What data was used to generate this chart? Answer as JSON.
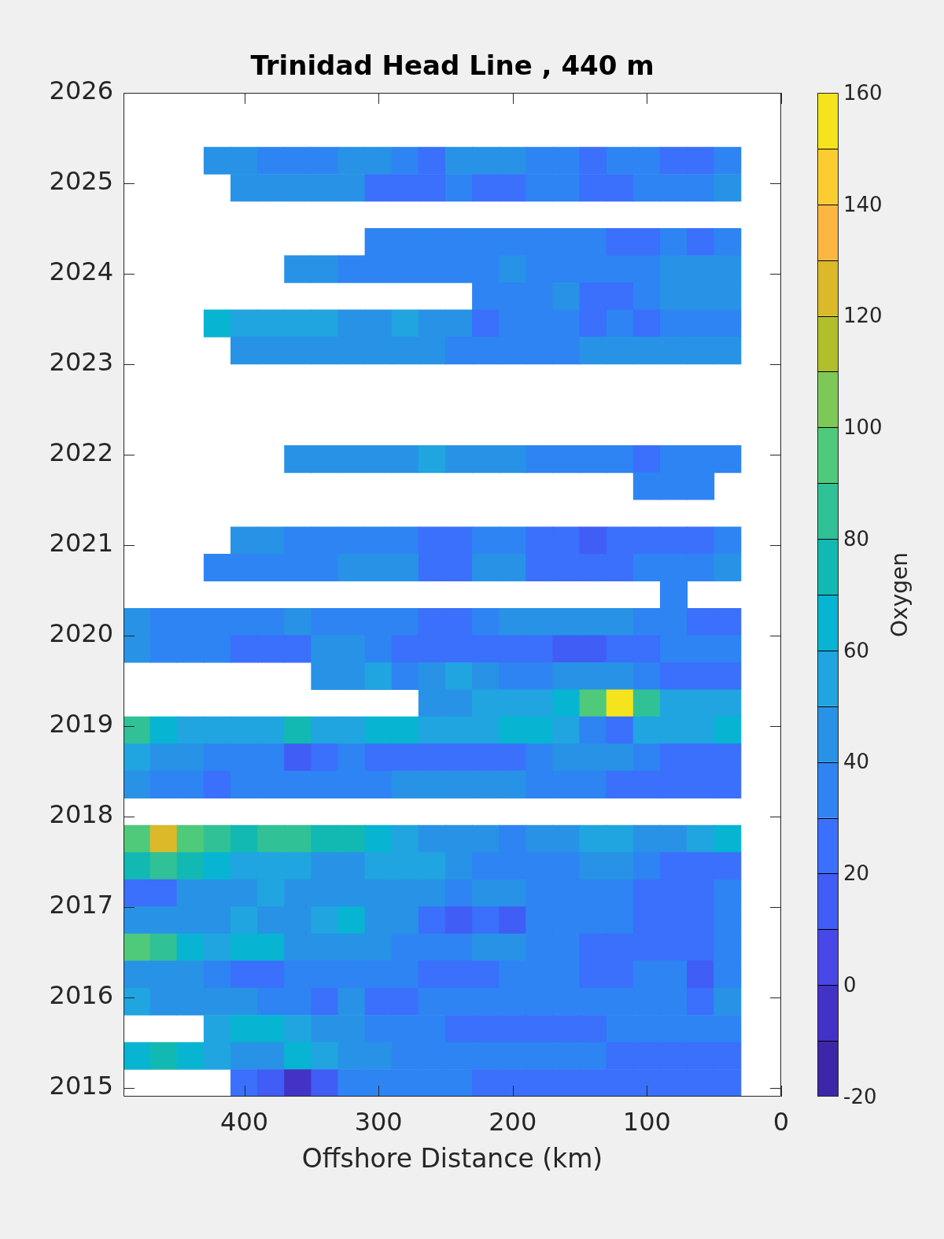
{
  "chart_data": {
    "type": "scatter",
    "title": "Trinidad Head Line , 440 m",
    "xlabel": "Offshore Distance (km)",
    "clabel": "Oxygen",
    "marker": "square",
    "x": [
      420,
      400,
      380,
      360,
      340,
      320,
      300,
      280,
      260,
      240,
      220,
      200,
      180,
      160,
      140,
      120,
      100,
      80,
      60,
      40,
      400,
      380,
      360,
      340,
      320,
      300,
      280,
      260,
      240,
      220,
      200,
      180,
      160,
      140,
      120,
      100,
      80,
      60,
      40,
      300,
      280,
      260,
      240,
      220,
      200,
      180,
      160,
      140,
      120,
      100,
      80,
      60,
      40,
      360,
      340,
      320,
      300,
      280,
      260,
      240,
      220,
      200,
      180,
      160,
      140,
      120,
      100,
      80,
      60,
      40,
      220,
      200,
      180,
      160,
      140,
      120,
      100,
      80,
      60,
      40,
      420,
      400,
      380,
      360,
      340,
      320,
      300,
      280,
      260,
      240,
      220,
      200,
      180,
      160,
      140,
      120,
      100,
      80,
      60,
      40,
      400,
      380,
      360,
      340,
      320,
      300,
      280,
      260,
      240,
      220,
      200,
      180,
      160,
      140,
      120,
      100,
      80,
      60,
      40,
      360,
      340,
      320,
      300,
      280,
      260,
      240,
      220,
      200,
      180,
      160,
      140,
      120,
      100,
      80,
      60,
      40,
      100,
      80,
      60,
      400,
      380,
      360,
      340,
      320,
      300,
      280,
      260,
      240,
      220,
      200,
      180,
      160,
      140,
      120,
      100,
      80,
      60,
      40,
      420,
      400,
      380,
      360,
      340,
      320,
      300,
      280,
      260,
      240,
      220,
      200,
      180,
      160,
      140,
      120,
      100,
      80,
      60,
      40,
      80,
      480,
      460,
      440,
      420,
      400,
      380,
      360,
      340,
      320,
      300,
      280,
      260,
      240,
      220,
      200,
      180,
      160,
      140,
      120,
      100,
      80,
      60,
      40,
      480,
      460,
      440,
      420,
      400,
      380,
      360,
      340,
      320,
      300,
      280,
      260,
      240,
      220,
      200,
      180,
      160,
      140,
      120,
      100,
      80,
      60,
      40,
      340,
      320,
      300,
      280,
      260,
      240,
      220,
      200,
      180,
      160,
      140,
      120,
      100,
      80,
      60,
      40,
      260,
      240,
      220,
      200,
      180,
      160,
      140,
      120,
      100,
      80,
      60,
      40,
      480,
      460,
      440,
      420,
      400,
      380,
      360,
      340,
      320,
      300,
      280,
      260,
      240,
      220,
      200,
      180,
      160,
      140,
      120,
      100,
      80,
      60,
      40,
      480,
      460,
      440,
      420,
      400,
      380,
      360,
      340,
      320,
      300,
      280,
      260,
      240,
      220,
      200,
      180,
      160,
      140,
      120,
      100,
      80,
      60,
      40,
      480,
      460,
      440,
      420,
      400,
      380,
      360,
      340,
      320,
      300,
      280,
      260,
      240,
      220,
      200,
      180,
      160,
      140,
      120,
      100,
      80,
      60,
      40,
      480,
      460,
      440,
      420,
      400,
      380,
      360,
      340,
      320,
      300,
      280,
      260,
      240,
      220,
      200,
      180,
      160,
      140,
      120,
      100,
      80,
      60,
      40,
      480,
      460,
      440,
      420,
      400,
      380,
      360,
      340,
      320,
      300,
      280,
      260,
      240,
      220,
      200,
      180,
      160,
      140,
      120,
      100,
      80,
      60,
      40,
      480,
      460,
      440,
      420,
      400,
      380,
      360,
      340,
      320,
      300,
      280,
      260,
      240,
      220,
      200,
      180,
      160,
      140,
      120,
      100,
      80,
      60,
      40,
      480,
      460,
      440,
      420,
      400,
      380,
      360,
      340,
      320,
      300,
      280,
      260,
      240,
      220,
      200,
      180,
      160,
      140,
      120,
      100,
      80,
      60,
      40,
      480,
      460,
      440,
      420,
      400,
      380,
      360,
      340,
      320,
      300,
      280,
      260,
      240,
      220,
      200,
      180,
      160,
      140,
      120,
      100,
      80,
      60,
      40,
      480,
      460,
      440,
      420,
      400,
      380,
      360,
      340,
      320,
      300,
      280,
      260,
      240,
      220,
      200,
      180,
      160,
      140,
      120,
      100,
      80,
      60,
      40,
      480,
      460,
      440,
      420,
      400,
      380,
      360,
      340,
      320,
      300,
      280,
      260,
      240,
      220,
      200,
      180,
      160,
      140,
      120,
      100,
      80,
      60,
      40,
      420,
      400,
      380,
      360,
      340,
      320,
      300,
      280,
      260,
      240,
      220,
      200,
      180,
      160,
      140,
      120,
      100,
      80,
      60,
      40,
      480,
      460,
      440,
      420,
      400,
      380,
      360,
      340,
      320,
      300,
      280,
      260,
      240,
      220,
      200,
      180,
      160,
      140,
      120,
      100,
      80,
      60,
      40,
      400,
      380,
      360,
      340,
      320,
      300,
      280,
      260,
      240,
      220,
      200,
      180,
      160,
      140,
      120,
      100,
      80,
      60,
      40
    ],
    "values": [
      2025.25,
      2025.25,
      2025.25,
      2025.25,
      2025.25,
      2025.25,
      2025.25,
      2025.25,
      2025.25,
      2025.25,
      2025.25,
      2025.25,
      2025.25,
      2025.25,
      2025.25,
      2025.25,
      2025.25,
      2025.25,
      2025.25,
      2025.25,
      2024.95,
      2024.95,
      2024.95,
      2024.95,
      2024.95,
      2024.95,
      2024.95,
      2024.95,
      2024.95,
      2024.95,
      2024.95,
      2024.95,
      2024.95,
      2024.95,
      2024.95,
      2024.95,
      2024.95,
      2024.95,
      2024.95,
      2024.35,
      2024.35,
      2024.35,
      2024.35,
      2024.35,
      2024.35,
      2024.35,
      2024.35,
      2024.35,
      2024.35,
      2024.35,
      2024.35,
      2024.35,
      2024.35,
      2024.05,
      2024.05,
      2024.05,
      2024.05,
      2024.05,
      2024.05,
      2024.05,
      2024.05,
      2024.05,
      2024.05,
      2024.05,
      2024.05,
      2024.05,
      2024.05,
      2024.05,
      2024.05,
      2024.05,
      2023.75,
      2023.75,
      2023.75,
      2023.75,
      2023.75,
      2023.75,
      2023.75,
      2023.75,
      2023.75,
      2023.75,
      2023.45,
      2023.45,
      2023.45,
      2023.45,
      2023.45,
      2023.45,
      2023.45,
      2023.45,
      2023.45,
      2023.45,
      2023.45,
      2023.45,
      2023.45,
      2023.45,
      2023.45,
      2023.45,
      2023.45,
      2023.45,
      2023.45,
      2023.45,
      2023.15,
      2023.15,
      2023.15,
      2023.15,
      2023.15,
      2023.15,
      2023.15,
      2023.15,
      2023.15,
      2023.15,
      2023.15,
      2023.15,
      2023.15,
      2023.15,
      2023.15,
      2023.15,
      2023.15,
      2023.15,
      2023.15,
      2021.95,
      2021.95,
      2021.95,
      2021.95,
      2021.95,
      2021.95,
      2021.95,
      2021.95,
      2021.95,
      2021.95,
      2021.95,
      2021.95,
      2021.95,
      2021.95,
      2021.95,
      2021.95,
      2021.95,
      2021.65,
      2021.65,
      2021.65,
      2021.05,
      2021.05,
      2021.05,
      2021.05,
      2021.05,
      2021.05,
      2021.05,
      2021.05,
      2021.05,
      2021.05,
      2021.05,
      2021.05,
      2021.05,
      2021.05,
      2021.05,
      2021.05,
      2021.05,
      2021.05,
      2021.05,
      2020.75,
      2020.75,
      2020.75,
      2020.75,
      2020.75,
      2020.75,
      2020.75,
      2020.75,
      2020.75,
      2020.75,
      2020.75,
      2020.75,
      2020.75,
      2020.75,
      2020.75,
      2020.75,
      2020.75,
      2020.75,
      2020.75,
      2020.75,
      2020.45,
      2020.15,
      2020.15,
      2020.15,
      2020.15,
      2020.15,
      2020.15,
      2020.15,
      2020.15,
      2020.15,
      2020.15,
      2020.15,
      2020.15,
      2020.15,
      2020.15,
      2020.15,
      2020.15,
      2020.15,
      2020.15,
      2020.15,
      2020.15,
      2020.15,
      2020.15,
      2020.15,
      2019.85,
      2019.85,
      2019.85,
      2019.85,
      2019.85,
      2019.85,
      2019.85,
      2019.85,
      2019.85,
      2019.85,
      2019.85,
      2019.85,
      2019.85,
      2019.85,
      2019.85,
      2019.85,
      2019.85,
      2019.85,
      2019.85,
      2019.85,
      2019.85,
      2019.85,
      2019.85,
      2019.55,
      2019.55,
      2019.55,
      2019.55,
      2019.55,
      2019.55,
      2019.55,
      2019.55,
      2019.55,
      2019.55,
      2019.55,
      2019.55,
      2019.55,
      2019.55,
      2019.55,
      2019.55,
      2019.25,
      2019.25,
      2019.25,
      2019.25,
      2019.25,
      2019.25,
      2019.25,
      2019.25,
      2019.25,
      2019.25,
      2019.25,
      2019.25,
      2018.95,
      2018.95,
      2018.95,
      2018.95,
      2018.95,
      2018.95,
      2018.95,
      2018.95,
      2018.95,
      2018.95,
      2018.95,
      2018.95,
      2018.95,
      2018.95,
      2018.95,
      2018.95,
      2018.95,
      2018.95,
      2018.95,
      2018.95,
      2018.95,
      2018.95,
      2018.95,
      2018.65,
      2018.65,
      2018.65,
      2018.65,
      2018.65,
      2018.65,
      2018.65,
      2018.65,
      2018.65,
      2018.65,
      2018.65,
      2018.65,
      2018.65,
      2018.65,
      2018.65,
      2018.65,
      2018.65,
      2018.65,
      2018.65,
      2018.65,
      2018.65,
      2018.65,
      2018.65,
      2018.35,
      2018.35,
      2018.35,
      2018.35,
      2018.35,
      2018.35,
      2018.35,
      2018.35,
      2018.35,
      2018.35,
      2018.35,
      2018.35,
      2018.35,
      2018.35,
      2018.35,
      2018.35,
      2018.35,
      2018.35,
      2018.35,
      2018.35,
      2018.35,
      2018.35,
      2018.35,
      2017.75,
      2017.75,
      2017.75,
      2017.75,
      2017.75,
      2017.75,
      2017.75,
      2017.75,
      2017.75,
      2017.75,
      2017.75,
      2017.75,
      2017.75,
      2017.75,
      2017.75,
      2017.75,
      2017.75,
      2017.75,
      2017.75,
      2017.75,
      2017.75,
      2017.75,
      2017.75,
      2017.45,
      2017.45,
      2017.45,
      2017.45,
      2017.45,
      2017.45,
      2017.45,
      2017.45,
      2017.45,
      2017.45,
      2017.45,
      2017.45,
      2017.45,
      2017.45,
      2017.45,
      2017.45,
      2017.45,
      2017.45,
      2017.45,
      2017.45,
      2017.45,
      2017.45,
      2017.45,
      2017.15,
      2017.15,
      2017.15,
      2017.15,
      2017.15,
      2017.15,
      2017.15,
      2017.15,
      2017.15,
      2017.15,
      2017.15,
      2017.15,
      2017.15,
      2017.15,
      2017.15,
      2017.15,
      2017.15,
      2017.15,
      2017.15,
      2017.15,
      2017.15,
      2017.15,
      2017.15,
      2016.85,
      2016.85,
      2016.85,
      2016.85,
      2016.85,
      2016.85,
      2016.85,
      2016.85,
      2016.85,
      2016.85,
      2016.85,
      2016.85,
      2016.85,
      2016.85,
      2016.85,
      2016.85,
      2016.85,
      2016.85,
      2016.85,
      2016.85,
      2016.85,
      2016.85,
      2016.85,
      2016.55,
      2016.55,
      2016.55,
      2016.55,
      2016.55,
      2016.55,
      2016.55,
      2016.55,
      2016.55,
      2016.55,
      2016.55,
      2016.55,
      2016.55,
      2016.55,
      2016.55,
      2016.55,
      2016.55,
      2016.55,
      2016.55,
      2016.55,
      2016.55,
      2016.55,
      2016.55,
      2016.25,
      2016.25,
      2016.25,
      2016.25,
      2016.25,
      2016.25,
      2016.25,
      2016.25,
      2016.25,
      2016.25,
      2016.25,
      2016.25,
      2016.25,
      2016.25,
      2016.25,
      2016.25,
      2016.25,
      2016.25,
      2016.25,
      2016.25,
      2016.25,
      2016.25,
      2016.25,
      2015.95,
      2015.95,
      2015.95,
      2015.95,
      2015.95,
      2015.95,
      2015.95,
      2015.95,
      2015.95,
      2015.95,
      2015.95,
      2015.95,
      2015.95,
      2015.95,
      2015.95,
      2015.95,
      2015.95,
      2015.95,
      2015.95,
      2015.95,
      2015.95,
      2015.95,
      2015.95,
      2015.65,
      2015.65,
      2015.65,
      2015.65,
      2015.65,
      2015.65,
      2015.65,
      2015.65,
      2015.65,
      2015.65,
      2015.65,
      2015.65,
      2015.65,
      2015.65,
      2015.65,
      2015.65,
      2015.65,
      2015.65,
      2015.65,
      2015.65,
      2015.35,
      2015.35,
      2015.35,
      2015.35,
      2015.35,
      2015.35,
      2015.35,
      2015.35,
      2015.35,
      2015.35,
      2015.35,
      2015.35,
      2015.35,
      2015.35,
      2015.35,
      2015.35,
      2015.35,
      2015.35,
      2015.35,
      2015.35,
      2015.35,
      2015.35,
      2015.35,
      2015.05,
      2015.05,
      2015.05,
      2015.05,
      2015.05,
      2015.05,
      2015.05,
      2015.05,
      2015.05,
      2015.05,
      2015.05,
      2015.05,
      2015.05,
      2015.05,
      2015.05,
      2015.05,
      2015.05,
      2015.05,
      2015.05
    ],
    "cvalues": [
      45,
      45,
      35,
      35,
      35,
      45,
      45,
      35,
      25,
      45,
      45,
      45,
      35,
      35,
      25,
      35,
      35,
      25,
      25,
      35,
      45,
      45,
      45,
      45,
      45,
      25,
      25,
      25,
      35,
      25,
      25,
      35,
      35,
      25,
      25,
      35,
      35,
      35,
      45,
      35,
      35,
      35,
      35,
      35,
      35,
      35,
      35,
      35,
      25,
      25,
      35,
      25,
      35,
      45,
      45,
      35,
      35,
      35,
      35,
      35,
      35,
      45,
      35,
      35,
      35,
      35,
      35,
      45,
      45,
      45,
      35,
      35,
      35,
      45,
      25,
      25,
      35,
      45,
      45,
      45,
      65,
      55,
      55,
      55,
      55,
      45,
      45,
      55,
      45,
      45,
      25,
      35,
      35,
      35,
      25,
      35,
      25,
      35,
      35,
      35,
      45,
      45,
      45,
      45,
      45,
      45,
      45,
      45,
      35,
      35,
      35,
      35,
      35,
      45,
      45,
      45,
      45,
      45,
      45,
      45,
      45,
      45,
      45,
      45,
      55,
      45,
      45,
      45,
      35,
      35,
      35,
      35,
      25,
      35,
      35,
      35,
      35,
      35,
      35,
      45,
      45,
      35,
      35,
      35,
      35,
      35,
      25,
      25,
      35,
      35,
      25,
      25,
      15,
      25,
      25,
      25,
      25,
      35,
      35,
      35,
      35,
      35,
      35,
      45,
      45,
      45,
      25,
      25,
      45,
      45,
      25,
      25,
      25,
      25,
      35,
      35,
      35,
      45,
      35,
      45,
      35,
      35,
      35,
      35,
      35,
      45,
      35,
      35,
      35,
      35,
      25,
      25,
      35,
      45,
      45,
      45,
      45,
      45,
      35,
      35,
      25,
      25,
      45,
      35,
      35,
      35,
      25,
      25,
      25,
      45,
      45,
      35,
      25,
      25,
      25,
      25,
      25,
      25,
      15,
      15,
      25,
      25,
      35,
      35,
      35,
      45,
      45,
      55,
      35,
      45,
      55,
      45,
      35,
      35,
      45,
      45,
      45,
      35,
      25,
      25,
      25,
      45,
      45,
      55,
      55,
      55,
      65,
      95,
      155,
      85,
      55,
      55,
      55,
      85,
      65,
      55,
      55,
      55,
      55,
      75,
      55,
      55,
      65,
      65,
      55,
      55,
      55,
      65,
      65,
      55,
      35,
      25,
      55,
      55,
      55,
      65,
      55,
      45,
      45,
      35,
      35,
      35,
      15,
      25,
      35,
      25,
      25,
      25,
      25,
      25,
      25,
      35,
      45,
      45,
      45,
      35,
      25,
      25,
      25,
      45,
      35,
      35,
      25,
      35,
      35,
      35,
      35,
      35,
      35,
      45,
      45,
      45,
      45,
      45,
      35,
      35,
      35,
      25,
      25,
      25,
      25,
      25,
      95,
      125,
      95,
      85,
      75,
      85,
      85,
      75,
      75,
      65,
      55,
      45,
      45,
      45,
      35,
      45,
      45,
      55,
      55,
      45,
      45,
      55,
      65,
      75,
      85,
      75,
      65,
      55,
      55,
      55,
      45,
      45,
      55,
      55,
      55,
      45,
      35,
      35,
      35,
      35,
      45,
      45,
      35,
      25,
      25,
      25,
      25,
      25,
      45,
      45,
      45,
      55,
      45,
      45,
      45,
      45,
      45,
      45,
      35,
      45,
      45,
      35,
      35,
      35,
      35,
      25,
      25,
      25,
      35,
      45,
      45,
      45,
      45,
      55,
      45,
      45,
      55,
      65,
      45,
      45,
      25,
      15,
      25,
      15,
      35,
      35,
      35,
      35,
      25,
      25,
      25,
      35,
      95,
      85,
      65,
      55,
      65,
      65,
      45,
      45,
      45,
      45,
      35,
      35,
      35,
      45,
      45,
      35,
      35,
      25,
      25,
      25,
      25,
      25,
      35,
      45,
      45,
      45,
      35,
      25,
      25,
      35,
      35,
      35,
      35,
      35,
      25,
      25,
      25,
      35,
      35,
      35,
      25,
      25,
      35,
      35,
      15,
      35,
      55,
      45,
      45,
      45,
      45,
      35,
      35,
      25,
      45,
      25,
      25,
      35,
      35,
      35,
      35,
      35,
      35,
      35,
      35,
      35,
      35,
      25,
      45,
      55,
      65,
      65,
      55,
      45,
      45,
      35,
      35,
      35,
      25,
      25,
      25,
      25,
      25,
      25,
      35,
      35,
      35,
      35,
      35,
      65,
      75,
      65,
      55,
      45,
      45,
      65,
      55,
      45,
      45,
      35,
      35,
      35,
      35,
      35,
      35,
      35,
      35,
      25,
      25,
      25,
      25,
      25,
      25,
      15,
      -5,
      15,
      35,
      35,
      35,
      35,
      35,
      25,
      25,
      25,
      25,
      25,
      25,
      25,
      25,
      25,
      25
    ],
    "xlim": [
      490,
      0
    ],
    "xticks": [
      400,
      300,
      200,
      100,
      0
    ],
    "ylim": [
      2014.9,
      2026
    ],
    "yticks": [
      2015,
      2016,
      2017,
      2018,
      2019,
      2020,
      2021,
      2022,
      2023,
      2024,
      2025,
      2026
    ],
    "clim": [
      -20,
      160
    ],
    "cticks": [
      -20,
      0,
      20,
      40,
      60,
      80,
      100,
      120,
      140,
      160
    ]
  }
}
